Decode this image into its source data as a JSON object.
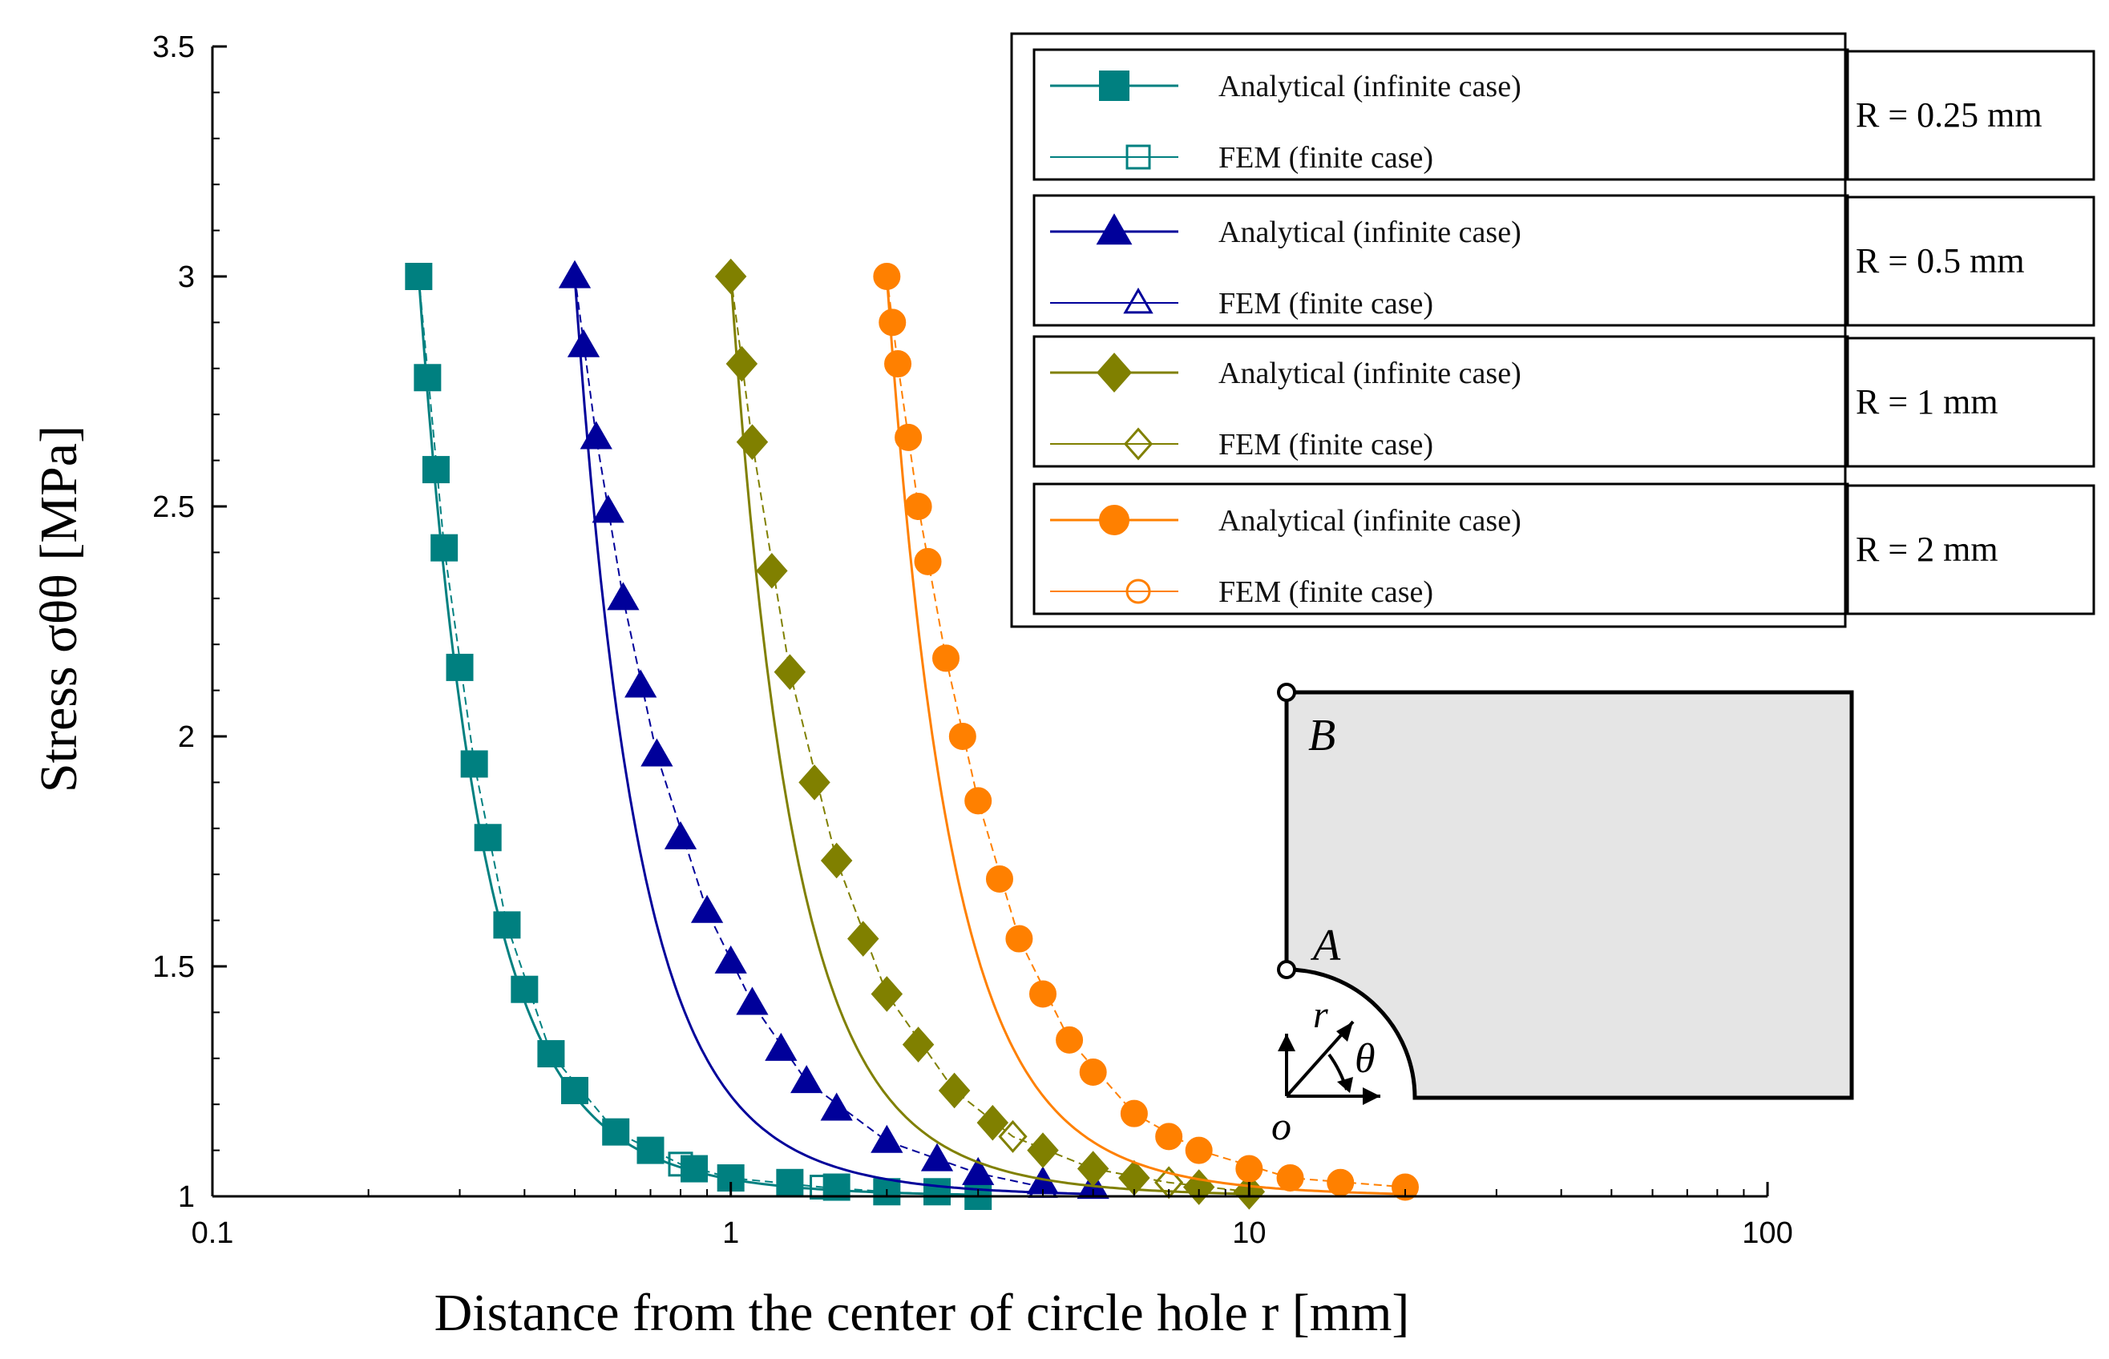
{
  "chart_data": {
    "type": "line",
    "xlabel": "Distance from the center of circle hole r [mm]",
    "ylabel": "Stress σθθ [MPa]",
    "xscale": "log",
    "xlim": [
      0.1,
      100
    ],
    "ylim": [
      1,
      3.5
    ],
    "x_ticks": [
      "0.1",
      "1",
      "10",
      "100"
    ],
    "y_ticks": [
      "1",
      "1.5",
      "2",
      "2.5",
      "3",
      "3.5"
    ],
    "legend_position": "top-right",
    "groups": [
      {
        "radius_label": "R = 0.25 mm",
        "radius": 0.25,
        "color": "#008080",
        "r_max": 3.0,
        "series": [
          {
            "name": "Analytical (infinite case)",
            "marker": "square-filled",
            "x": [
              0.25,
              0.26,
              0.27,
              0.28,
              0.3,
              0.32,
              0.34,
              0.37,
              0.4,
              0.45,
              0.5,
              0.6,
              0.7,
              0.85,
              1.0,
              1.3,
              1.6,
              2.0,
              2.5,
              3.0
            ],
            "y": [
              3.0,
              2.78,
              2.58,
              2.41,
              2.15,
              1.94,
              1.78,
              1.59,
              1.45,
              1.31,
              1.23,
              1.14,
              1.1,
              1.06,
              1.04,
              1.03,
              1.02,
              1.01,
              1.01,
              1.0
            ]
          },
          {
            "name": "FEM (finite case)",
            "marker": "square-open",
            "x": [
              0.25,
              0.28,
              0.32,
              0.37,
              0.45,
              0.6,
              0.8,
              1.0,
              1.5,
              2.0,
              3.0
            ],
            "y": [
              3.0,
              2.41,
              1.94,
              1.59,
              1.31,
              1.14,
              1.07,
              1.04,
              1.02,
              1.01,
              1.0
            ]
          }
        ]
      },
      {
        "radius_label": "R = 0.5 mm",
        "radius": 0.5,
        "color": "#00009A",
        "r_max": 5.0,
        "series": [
          {
            "name": "Analytical (infinite case)",
            "marker": "triangle-filled",
            "x": [
              0.5,
              0.52,
              0.55,
              0.58,
              0.62,
              0.67,
              0.72,
              0.8,
              0.9,
              1.0,
              1.1,
              1.25,
              1.4,
              1.6,
              2.0,
              2.5,
              3.0,
              4.0,
              5.0
            ],
            "y": [
              3.0,
              2.85,
              2.65,
              2.49,
              2.3,
              2.11,
              1.96,
              1.78,
              1.62,
              1.51,
              1.42,
              1.32,
              1.25,
              1.19,
              1.12,
              1.08,
              1.05,
              1.03,
              1.02
            ]
          },
          {
            "name": "FEM (finite case)",
            "marker": "triangle-open",
            "x": [
              0.5,
              0.55,
              0.62,
              0.72,
              0.9,
              1.1,
              1.4,
              2.0,
              3.0,
              4.0
            ],
            "y": [
              3.0,
              2.65,
              2.3,
              1.96,
              1.62,
              1.42,
              1.25,
              1.12,
              1.05,
              1.02
            ]
          }
        ]
      },
      {
        "radius_label": "R = 1 mm",
        "radius": 1,
        "color": "#808000",
        "r_max": 10.0,
        "series": [
          {
            "name": "Analytical (infinite case)",
            "marker": "diamond-filled",
            "x": [
              1.0,
              1.05,
              1.1,
              1.2,
              1.3,
              1.45,
              1.6,
              1.8,
              2.0,
              2.3,
              2.7,
              3.2,
              4.0,
              5.0,
              6.0,
              8.0,
              10.0
            ],
            "y": [
              3.0,
              2.81,
              2.64,
              2.36,
              2.14,
              1.9,
              1.73,
              1.56,
              1.44,
              1.33,
              1.23,
              1.16,
              1.1,
              1.06,
              1.04,
              1.02,
              1.01
            ]
          },
          {
            "name": "FEM (finite case)",
            "marker": "diamond-open",
            "x": [
              1.0,
              1.1,
              1.3,
              1.6,
              2.0,
              2.7,
              3.5,
              5.0,
              7.0,
              10.0
            ],
            "y": [
              3.0,
              2.64,
              2.14,
              1.73,
              1.44,
              1.23,
              1.13,
              1.06,
              1.03,
              1.01
            ]
          }
        ]
      },
      {
        "radius_label": "R = 2 mm",
        "radius": 2,
        "color": "#FF8000",
        "r_max": 20.0,
        "series": [
          {
            "name": "Analytical (infinite case)",
            "marker": "circle-filled",
            "x": [
              2.0,
              2.05,
              2.1,
              2.2,
              2.3,
              2.4,
              2.6,
              2.8,
              3.0,
              3.3,
              3.6,
              4.0,
              4.5,
              5.0,
              6.0,
              7.0,
              8.0,
              10.0,
              12.0,
              15.0,
              20.0
            ],
            "y": [
              3.0,
              2.9,
              2.81,
              2.65,
              2.5,
              2.38,
              2.17,
              2.0,
              1.86,
              1.69,
              1.56,
              1.44,
              1.34,
              1.27,
              1.18,
              1.13,
              1.1,
              1.06,
              1.04,
              1.03,
              1.02
            ]
          },
          {
            "name": "FEM (finite case)",
            "marker": "circle-open",
            "x": [
              2.0,
              2.1,
              2.3,
              2.6,
              3.0,
              3.6,
              4.5,
              6.0,
              8.0,
              12.0,
              20.0
            ],
            "y": [
              3.0,
              2.81,
              2.5,
              2.17,
              1.86,
              1.56,
              1.34,
              1.18,
              1.1,
              1.04,
              1.02
            ]
          }
        ]
      }
    ]
  },
  "legend": {
    "groups": [
      {
        "analytical": "Analytical (infinite case)",
        "fem": "FEM (finite case)",
        "radius": "R = 0.25 mm"
      },
      {
        "analytical": "Analytical (infinite case)",
        "fem": "FEM (finite case)",
        "radius": "R = 0.5 mm"
      },
      {
        "analytical": "Analytical (infinite case)",
        "fem": "FEM (finite case)",
        "radius": "R = 1 mm"
      },
      {
        "analytical": "Analytical (infinite case)",
        "fem": "FEM (finite case)",
        "radius": "R = 2 mm"
      }
    ]
  },
  "inset": {
    "point_b": "B",
    "point_a": "A",
    "r_label": "r",
    "theta_label": "θ",
    "origin_label": "o"
  },
  "colors": {
    "teal": "#008080",
    "navy": "#00009A",
    "olive": "#808000",
    "orange": "#FF8000",
    "inset_fill": "#E5E5E5"
  }
}
